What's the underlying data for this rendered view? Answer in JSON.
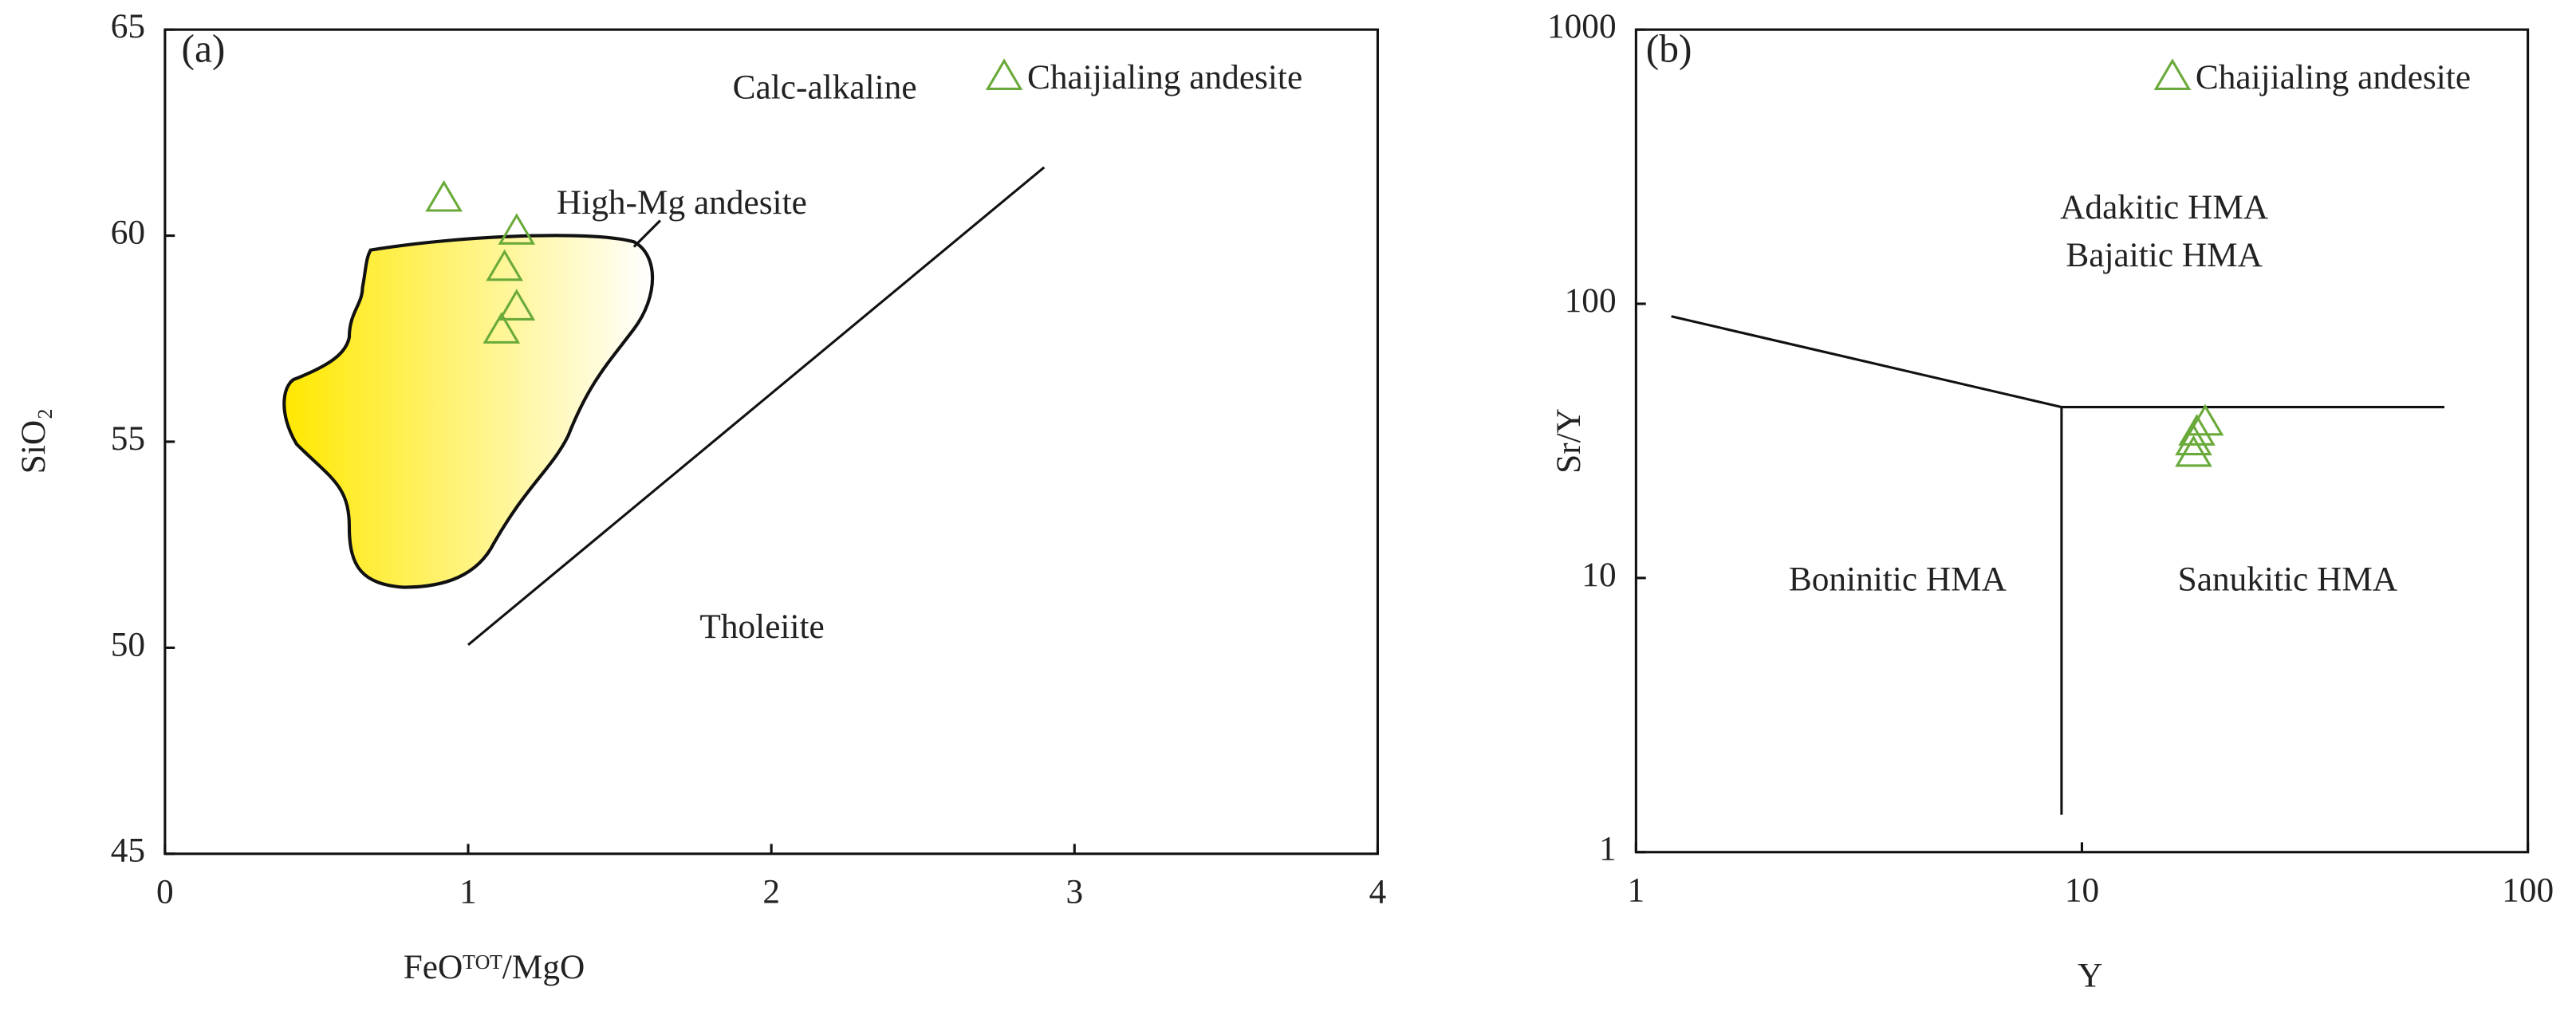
{
  "chart_data": [
    {
      "type": "scatter",
      "panel": "(a)",
      "xlabel": "FeOᵀᴼᵀ/MgO",
      "ylabel": "SiO₂",
      "xlim": [
        0,
        4
      ],
      "ylim": [
        45,
        65
      ],
      "xticks": [
        0,
        1,
        2,
        3,
        4
      ],
      "yticks": [
        45,
        50,
        55,
        60,
        65
      ],
      "annotations": [
        "Calc-alkaline",
        "High-Mg andesite",
        "Tholeiite"
      ],
      "series": [
        {
          "name": "Chaijialing andesite",
          "color": "#6aaa3a",
          "x": [
            0.92,
            1.16,
            1.12,
            1.16,
            1.11
          ],
          "values": [
            60.93,
            60.13,
            59.25,
            58.29,
            57.73
          ]
        }
      ],
      "lines": [
        {
          "x": [
            1.0,
            2.9
          ],
          "y": [
            50.07,
            61.66
          ]
        }
      ]
    },
    {
      "type": "scatter",
      "panel": "(b)",
      "xlabel": "Y",
      "ylabel": "Sr/Y",
      "xscale": "log",
      "yscale": "log",
      "xlim": [
        1,
        100
      ],
      "ylim": [
        1,
        1000
      ],
      "xticks": [
        1,
        10,
        100
      ],
      "yticks": [
        1,
        10,
        100,
        1000
      ],
      "annotations": [
        "Adakitic HMA",
        "Bajaitic HMA",
        "Boninitic HMA",
        "Sanukitic HMA"
      ],
      "series": [
        {
          "name": "Chaijialing andesite",
          "color": "#6aaa3a",
          "x": [
            18.9,
            18.1,
            17.8,
            17.8
          ],
          "values": [
            37.3,
            34.3,
            31.6,
            28.7
          ]
        }
      ],
      "lines": [
        {
          "x": [
            1.2,
            9,
            65
          ],
          "y": [
            90,
            42,
            42
          ]
        },
        {
          "x": [
            9,
            9
          ],
          "y": [
            42,
            1.37
          ]
        }
      ]
    }
  ]
}
